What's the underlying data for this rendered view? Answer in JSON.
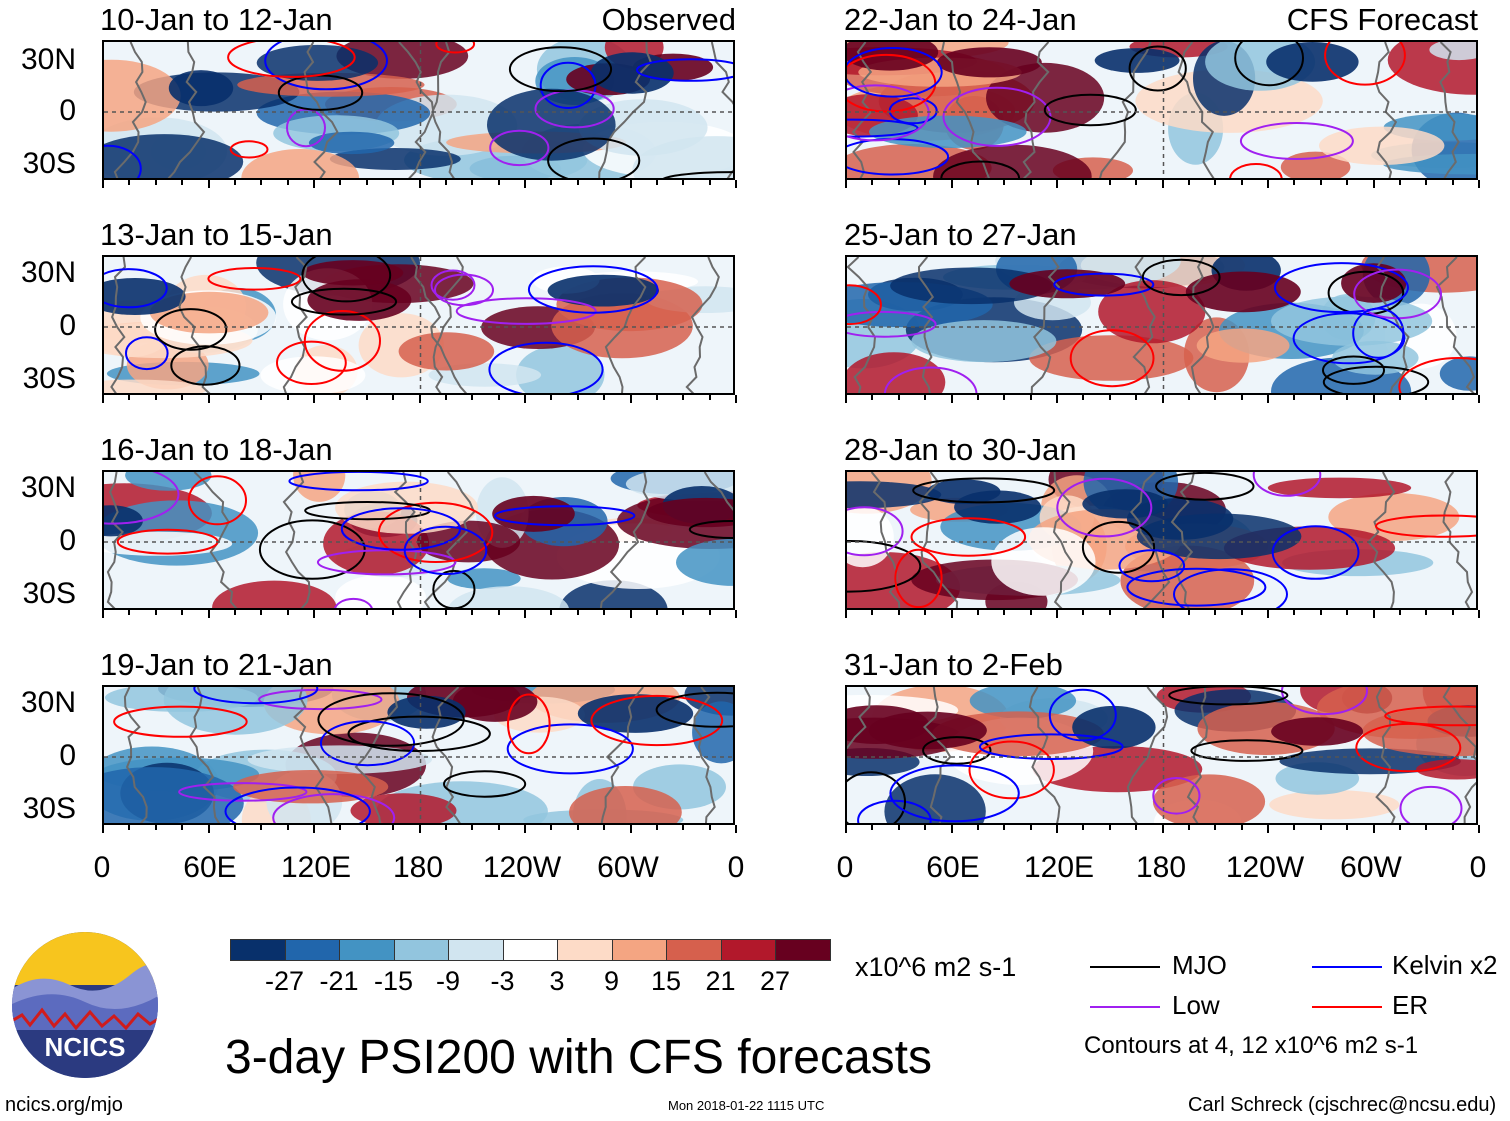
{
  "observed_label": "Observed",
  "forecast_label": "CFS Forecast",
  "left_panels": [
    {
      "title": "10-Jan to 12-Jan"
    },
    {
      "title": "13-Jan to 15-Jan"
    },
    {
      "title": "16-Jan to 18-Jan"
    },
    {
      "title": "19-Jan to 21-Jan"
    }
  ],
  "right_panels": [
    {
      "title": "22-Jan to 24-Jan"
    },
    {
      "title": "25-Jan to 27-Jan"
    },
    {
      "title": "28-Jan to 30-Jan"
    },
    {
      "title": "31-Jan to 2-Feb"
    }
  ],
  "lat_labels": [
    "30N",
    "0",
    "30S"
  ],
  "lon_labels": [
    "0",
    "60E",
    "120E",
    "180",
    "120W",
    "60W",
    "0"
  ],
  "colorbar": {
    "levels": [
      "-27",
      "-21",
      "-15",
      "-9",
      "-3",
      "3",
      "9",
      "15",
      "21",
      "27"
    ],
    "colors": [
      "#08306b",
      "#2166ac",
      "#4393c3",
      "#92c5de",
      "#d1e5f0",
      "#ffffff",
      "#fddbc7",
      "#f4a582",
      "#d6604d",
      "#b2182b",
      "#67001f"
    ],
    "units": "x10^6 m2 s-1"
  },
  "legend": {
    "mjo": {
      "label": "MJO",
      "color": "#000000"
    },
    "kelvin": {
      "label": "Kelvin x2",
      "color": "#0000ff"
    },
    "low": {
      "label": "Low",
      "color": "#a020f0"
    },
    "er": {
      "label": "ER",
      "color": "#ff0000"
    },
    "note": "Contours at 4, 12 x10^6 m2 s-1"
  },
  "main_title": "3-day PSI200 with CFS forecasts",
  "logo_text": "NCICS",
  "footer": {
    "website": "ncics.org/mjo",
    "timestamp": "Mon 2018-01-22 1115 UTC",
    "author": "Carl Schreck (cjschrec@ncsu.edu)"
  }
}
